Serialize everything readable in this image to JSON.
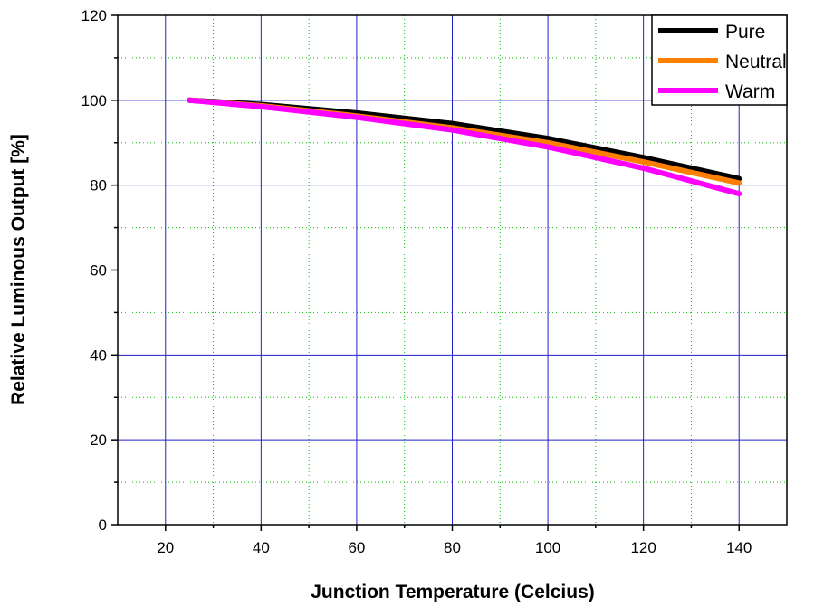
{
  "chart_data": {
    "type": "line",
    "title": "",
    "xlabel": "Junction Temperature (Celcius)",
    "ylabel": "Relative Luminous Output [%]",
    "xlim": [
      10,
      150
    ],
    "ylim": [
      0,
      120
    ],
    "x_ticks": [
      20,
      40,
      60,
      80,
      100,
      120,
      140
    ],
    "x_tick_labels": [
      "20",
      "40",
      "60",
      "80",
      "100",
      "120",
      "140"
    ],
    "y_ticks": [
      0,
      20,
      40,
      60,
      80,
      100,
      120
    ],
    "y_tick_labels": [
      "0",
      "20",
      "40",
      "60",
      "80",
      "100",
      "120"
    ],
    "grid": true,
    "legend_position": "top-right",
    "series": [
      {
        "name": "Pure",
        "color": "#000000",
        "x": [
          25,
          40,
          60,
          80,
          100,
          120,
          140
        ],
        "y": [
          100,
          99,
          97,
          94.5,
          91,
          86.5,
          81.5
        ]
      },
      {
        "name": "Neutral",
        "color": "#ff8000",
        "x": [
          25,
          40,
          60,
          80,
          100,
          120,
          140
        ],
        "y": [
          100,
          98.7,
          96.3,
          93.5,
          90,
          85.5,
          80.5
        ]
      },
      {
        "name": "Warm",
        "color": "#ff00ff",
        "x": [
          25,
          40,
          60,
          80,
          100,
          120,
          140
        ],
        "y": [
          100,
          98.5,
          96,
          93,
          89,
          84,
          78
        ]
      }
    ]
  }
}
